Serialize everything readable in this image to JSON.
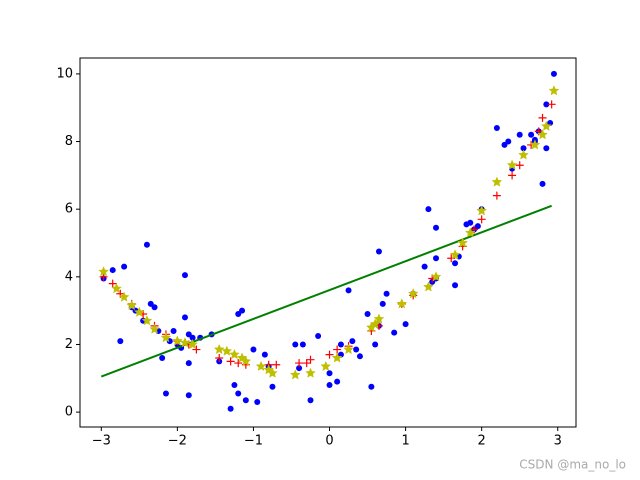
{
  "chart_data": {
    "type": "scatter",
    "xlim": [
      -3.28,
      3.24
    ],
    "ylim": [
      -0.44,
      10.47
    ],
    "xticks": [
      {
        "value": -3,
        "label": "−3"
      },
      {
        "value": -2,
        "label": "−2"
      },
      {
        "value": -1,
        "label": "−1"
      },
      0,
      1,
      2,
      3
    ],
    "yticks": [
      0,
      2,
      4,
      6,
      8,
      10
    ],
    "watermark": "CSDN @ma_no_lo",
    "series": [
      {
        "color": "#0000ff",
        "marker": "dot",
        "x": [
          -2.97,
          -2.85,
          -2.75,
          -2.7,
          -2.6,
          -2.55,
          -2.45,
          -2.4,
          -2.35,
          -2.3,
          -2.25,
          -2.2,
          -2.15,
          -2.1,
          -2.05,
          -2.0,
          -1.95,
          -1.9,
          -1.9,
          -1.85,
          -1.85,
          -1.85,
          -1.8,
          -1.7,
          -1.55,
          -1.45,
          -1.3,
          -1.25,
          -1.2,
          -1.15,
          -1.2,
          -1.1,
          -1.0,
          -0.95,
          -0.85,
          -0.8,
          -0.75,
          -0.45,
          -0.4,
          -0.35,
          -0.25,
          -0.15,
          0.0,
          0.0,
          0.1,
          0.15,
          0.15,
          0.25,
          0.3,
          0.35,
          0.4,
          0.5,
          0.55,
          0.6,
          0.65,
          0.65,
          0.75,
          0.7,
          0.85,
          1.0,
          1.1,
          1.25,
          1.3,
          1.4,
          1.4,
          1.35,
          1.4,
          1.65,
          1.65,
          1.7,
          1.8,
          1.85,
          1.9,
          1.95,
          2.0,
          2.2,
          2.3,
          2.35,
          2.4,
          2.5,
          2.55,
          2.65,
          2.7,
          2.75,
          2.8,
          2.85,
          2.85,
          2.9,
          2.95,
          2.7
        ],
        "values": [
          3.95,
          4.2,
          2.1,
          4.3,
          3.1,
          3.0,
          2.7,
          4.95,
          3.2,
          3.1,
          2.4,
          1.6,
          0.55,
          2.1,
          2.4,
          2.0,
          1.9,
          4.05,
          2.8,
          2.3,
          1.45,
          0.5,
          2.2,
          2.2,
          2.3,
          1.5,
          0.1,
          0.8,
          2.9,
          3.0,
          0.55,
          0.35,
          1.85,
          0.3,
          1.7,
          1.35,
          0.75,
          2.0,
          1.3,
          2.0,
          0.35,
          2.25,
          1.15,
          0.8,
          0.9,
          2.0,
          1.7,
          3.6,
          2.1,
          1.85,
          1.65,
          2.9,
          0.75,
          2.0,
          4.75,
          2.55,
          3.5,
          3.2,
          2.35,
          2.6,
          3.5,
          4.3,
          6.0,
          5.45,
          4.55,
          3.85,
          3.95,
          3.75,
          4.4,
          4.6,
          5.55,
          5.6,
          5.4,
          5.5,
          6.0,
          8.4,
          7.9,
          8.0,
          7.2,
          8.2,
          7.8,
          8.2,
          8.0,
          8.3,
          6.75,
          9.1,
          7.8,
          8.55,
          10.0,
          8.05
        ]
      },
      {
        "color": "#008000",
        "marker": "line",
        "x": [
          -3.0,
          2.92
        ],
        "values": [
          1.05,
          6.1
        ]
      },
      {
        "color": "#ff0000",
        "marker": "plus",
        "x": [
          -2.97,
          -2.85,
          -2.75,
          -2.6,
          -2.45,
          -2.3,
          -2.15,
          -2.0,
          -1.85,
          -1.75,
          -1.45,
          -1.3,
          -1.2,
          -1.1,
          -0.8,
          -0.7,
          -0.4,
          -0.3,
          -0.25,
          0.0,
          0.1,
          0.25,
          0.55,
          0.65,
          0.95,
          1.1,
          1.35,
          1.6,
          1.75,
          1.9,
          2.0,
          2.2,
          2.4,
          2.5,
          2.65,
          2.75,
          2.8,
          2.92
        ],
        "values": [
          4.0,
          3.8,
          3.5,
          3.2,
          2.9,
          2.55,
          2.3,
          2.1,
          2.0,
          1.85,
          1.6,
          1.5,
          1.45,
          1.4,
          1.4,
          1.4,
          1.45,
          1.45,
          1.55,
          1.7,
          1.85,
          1.95,
          2.4,
          2.55,
          3.2,
          3.45,
          3.95,
          4.55,
          4.9,
          5.4,
          5.7,
          6.4,
          7.0,
          7.3,
          7.9,
          8.3,
          8.7,
          9.1
        ]
      },
      {
        "color": "#bfbf00",
        "marker": "star",
        "x": [
          -2.97,
          -2.8,
          -2.7,
          -2.6,
          -2.5,
          -2.4,
          -2.3,
          -2.15,
          -2.0,
          -1.9,
          -1.8,
          -1.45,
          -1.35,
          -1.25,
          -1.15,
          -1.1,
          -0.9,
          -0.8,
          -0.75,
          -0.45,
          -0.25,
          -0.05,
          0.1,
          0.25,
          0.55,
          0.6,
          0.65,
          0.95,
          1.1,
          1.3,
          1.4,
          1.65,
          1.75,
          1.85,
          2.0,
          2.2,
          2.4,
          2.55,
          2.7,
          2.8,
          2.85,
          2.95
        ],
        "values": [
          4.15,
          3.65,
          3.4,
          3.15,
          2.95,
          2.7,
          2.45,
          2.2,
          2.1,
          2.05,
          2.0,
          1.85,
          1.8,
          1.7,
          1.6,
          1.5,
          1.35,
          1.25,
          1.15,
          1.1,
          1.15,
          1.35,
          1.6,
          1.85,
          2.5,
          2.6,
          2.75,
          3.2,
          3.5,
          3.7,
          4.0,
          4.65,
          5.0,
          5.3,
          5.95,
          6.8,
          7.3,
          7.6,
          7.9,
          8.2,
          8.45,
          9.5
        ]
      }
    ]
  }
}
